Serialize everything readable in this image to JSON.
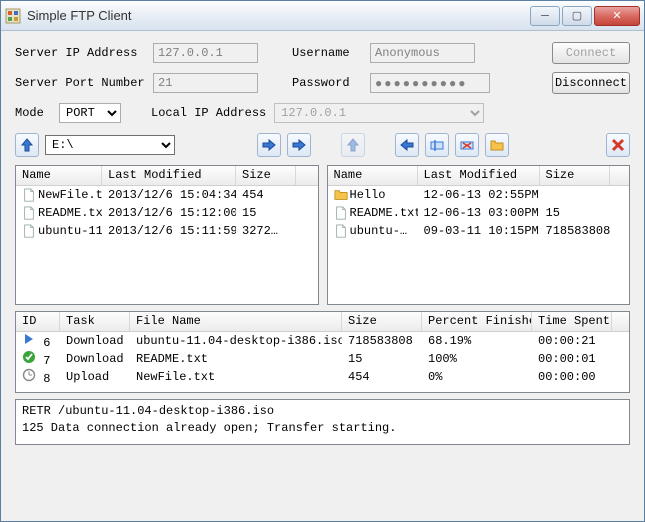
{
  "window": {
    "title": "Simple FTP Client"
  },
  "form": {
    "ip_label": "Server IP Address",
    "ip_value": "127.0.0.1",
    "port_label": "Server Port Number",
    "port_value": "21",
    "user_label": "Username",
    "user_value": "Anonymous",
    "pass_label": "Password",
    "pass_value": "●●●●●●●●●●",
    "mode_label": "Mode",
    "mode_value": "PORT",
    "lip_label": "Local IP Address",
    "lip_value": "127.0.0.1",
    "connect_label": "Connect",
    "disconnect_label": "Disconnect"
  },
  "toolbar": {
    "drive_value": "E:\\",
    "icons": {
      "local_up": "arrow-up-blue",
      "upload": "arrow-right-blue",
      "upload2": "arrow-right-blue",
      "remote_up": "arrow-up-blue",
      "download": "arrow-left-blue",
      "rename": "rename",
      "delete": "delete",
      "newfolder": "new-folder",
      "close": "close-red"
    }
  },
  "local": {
    "columns": [
      "Name",
      "Last Modified",
      "Size"
    ],
    "rows": [
      {
        "icon": "file",
        "name": "NewFile.txt",
        "mod": "2013/12/6 15:04:34",
        "size": "454"
      },
      {
        "icon": "file",
        "name": "README.txt",
        "mod": "2013/12/6 15:12:00",
        "size": "15"
      },
      {
        "icon": "file",
        "name": "ubuntu-11…",
        "mod": "2013/12/6 15:11:59",
        "size": "3272…"
      }
    ]
  },
  "remote": {
    "columns": [
      "Name",
      "Last Modified",
      "Size"
    ],
    "rows": [
      {
        "icon": "folder",
        "name": "Hello",
        "mod": "12-06-13 02:55PM",
        "size": ""
      },
      {
        "icon": "file",
        "name": "README.txt",
        "mod": "12-06-13 03:00PM",
        "size": "15"
      },
      {
        "icon": "file",
        "name": "ubuntu-…",
        "mod": "09-03-11 10:15PM",
        "size": "718583808"
      }
    ]
  },
  "tasks": {
    "columns": [
      "ID",
      "Task",
      "File Name",
      "Size",
      "Percent Finished",
      "Time Spent"
    ],
    "rows": [
      {
        "status": "running",
        "id": "6",
        "task": "Download",
        "file": "ubuntu-11.04-desktop-i386.iso",
        "size": "718583808",
        "pct": "68.19%",
        "time": "00:00:21"
      },
      {
        "status": "done",
        "id": "7",
        "task": "Download",
        "file": "README.txt",
        "size": "15",
        "pct": "100%",
        "time": "00:00:01"
      },
      {
        "status": "pending",
        "id": "8",
        "task": "Upload",
        "file": "NewFile.txt",
        "size": "454",
        "pct": "0%",
        "time": "00:00:00"
      }
    ]
  },
  "log": "RETR /ubuntu-11.04-desktop-i386.iso\n125 Data connection already open; Transfer starting.",
  "colors": {
    "accent_blue": "#3a78d6",
    "folder_yellow": "#f6c24a",
    "close_red": "#d43a2a",
    "ok_green": "#3aa53a"
  }
}
